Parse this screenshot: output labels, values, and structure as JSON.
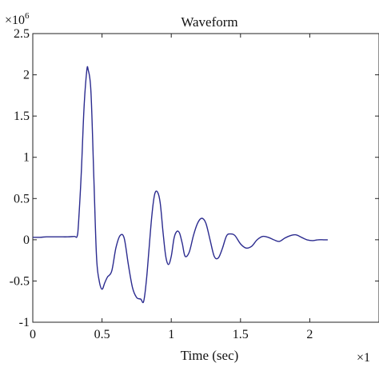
{
  "chart_data": {
    "type": "line",
    "title": "Waveform",
    "xlabel": "Time (sec)",
    "ylabel": "",
    "y_multiplier": "×10",
    "y_multiplier_exp": "6",
    "x_multiplier": "×1",
    "xlim": [
      0,
      2.5
    ],
    "ylim": [
      -1,
      2.5
    ],
    "xticks": [
      "0",
      "0.5",
      "1",
      "1.5",
      "2"
    ],
    "xtick_values": [
      0,
      0.5,
      1,
      1.5,
      2
    ],
    "yticks": [
      "-1",
      "-0.5",
      "0",
      "0.5",
      "1",
      "1.5",
      "2",
      "2.5"
    ],
    "ytick_values": [
      -1,
      -0.5,
      0,
      0.5,
      1,
      1.5,
      2,
      2.5
    ],
    "grid": false,
    "line_color": "#2b2b8f",
    "series": [
      {
        "x": [
          0,
          0.05,
          0.1,
          0.15,
          0.2,
          0.25,
          0.3,
          0.32,
          0.33,
          0.35,
          0.37,
          0.39,
          0.4,
          0.42,
          0.44,
          0.46,
          0.48,
          0.5,
          0.52,
          0.54,
          0.57,
          0.6,
          0.63,
          0.66,
          0.69,
          0.72,
          0.75,
          0.78,
          0.8,
          0.82,
          0.84,
          0.86,
          0.88,
          0.9,
          0.92,
          0.94,
          0.96,
          0.98,
          1.0,
          1.02,
          1.04,
          1.06,
          1.08,
          1.1,
          1.13,
          1.16,
          1.19,
          1.22,
          1.25,
          1.28,
          1.31,
          1.34,
          1.37,
          1.4,
          1.43,
          1.46,
          1.5,
          1.54,
          1.58,
          1.62,
          1.66,
          1.7,
          1.74,
          1.78,
          1.82,
          1.86,
          1.9,
          1.94,
          1.98,
          2.02,
          2.06,
          2.1,
          2.13
        ],
        "y": [
          0.03,
          0.03,
          0.035,
          0.035,
          0.035,
          0.035,
          0.04,
          0.04,
          0.2,
          0.8,
          1.6,
          2.05,
          2.06,
          1.8,
          0.8,
          -0.2,
          -0.5,
          -0.6,
          -0.52,
          -0.45,
          -0.38,
          -0.1,
          0.05,
          0.02,
          -0.3,
          -0.58,
          -0.7,
          -0.72,
          -0.75,
          -0.5,
          -0.1,
          0.3,
          0.55,
          0.58,
          0.45,
          0.1,
          -0.2,
          -0.3,
          -0.2,
          0.02,
          0.1,
          0.08,
          -0.05,
          -0.2,
          -0.15,
          0.05,
          0.2,
          0.26,
          0.2,
          0.0,
          -0.2,
          -0.22,
          -0.1,
          0.05,
          0.07,
          0.05,
          -0.05,
          -0.1,
          -0.08,
          0.0,
          0.04,
          0.03,
          0.0,
          -0.02,
          0.02,
          0.05,
          0.06,
          0.03,
          0.0,
          -0.01,
          0.0,
          0.0,
          0.0
        ]
      }
    ]
  }
}
